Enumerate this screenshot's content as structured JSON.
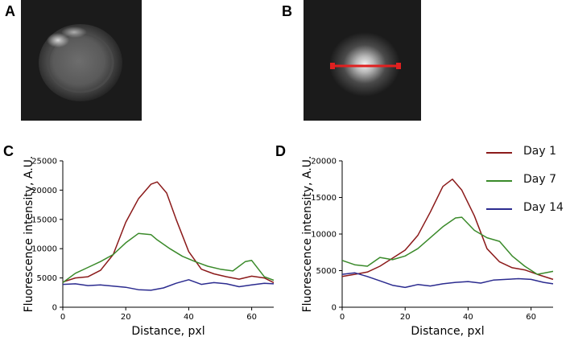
{
  "panels": {
    "a": "A",
    "b": "B",
    "c": "C",
    "d": "D"
  },
  "legend": [
    {
      "label": "Day 1",
      "color": "#8b1a1a"
    },
    {
      "label": "Day 7",
      "color": "#3a8a2a"
    },
    {
      "label": "Day 14",
      "color": "#2b2b8f"
    }
  ],
  "chart_data": [
    {
      "type": "line",
      "panel": "C",
      "xlabel": "Distance, pxl",
      "ylabel": "Fluorescence intensity, A.U.",
      "xlim": [
        0,
        67
      ],
      "ylim": [
        0,
        25000
      ],
      "xticks": [
        0,
        20,
        40,
        60
      ],
      "yticks": [
        0,
        5000,
        10000,
        15000,
        20000,
        25000
      ],
      "series": [
        {
          "name": "Day 1",
          "color": "#8b1a1a",
          "x": [
            0,
            4,
            8,
            12,
            16,
            20,
            24,
            28,
            30,
            33,
            36,
            40,
            44,
            48,
            52,
            56,
            60,
            64,
            67
          ],
          "y": [
            4300,
            5000,
            5200,
            6300,
            9000,
            14500,
            18500,
            21000,
            21400,
            19500,
            15000,
            9500,
            6500,
            5700,
            5200,
            4800,
            5300,
            5000,
            4200
          ]
        },
        {
          "name": "Day 7",
          "color": "#3a8a2a",
          "x": [
            0,
            4,
            8,
            12,
            16,
            20,
            24,
            28,
            30,
            34,
            38,
            42,
            46,
            50,
            54,
            58,
            60,
            64,
            67
          ],
          "y": [
            4200,
            5800,
            6800,
            7800,
            9000,
            11000,
            12600,
            12400,
            11500,
            10000,
            8700,
            7800,
            7000,
            6500,
            6200,
            7800,
            8000,
            5200,
            4600
          ]
        },
        {
          "name": "Day 14",
          "color": "#2b2b8f",
          "x": [
            0,
            4,
            8,
            12,
            16,
            20,
            24,
            28,
            32,
            36,
            40,
            44,
            48,
            52,
            56,
            60,
            64,
            67
          ],
          "y": [
            3900,
            4000,
            3700,
            3800,
            3600,
            3400,
            3000,
            2900,
            3300,
            4100,
            4700,
            3900,
            4200,
            4000,
            3500,
            3800,
            4100,
            4000
          ]
        }
      ]
    },
    {
      "type": "line",
      "panel": "D",
      "xlabel": "Distance, pxl",
      "ylabel": "Fluorescence intensity, A.U.",
      "xlim": [
        0,
        67
      ],
      "ylim": [
        0,
        20000
      ],
      "xticks": [
        0,
        20,
        40,
        60
      ],
      "yticks": [
        0,
        5000,
        10000,
        15000,
        20000
      ],
      "series": [
        {
          "name": "Day 1",
          "color": "#8b1a1a",
          "x": [
            0,
            4,
            8,
            12,
            16,
            20,
            24,
            28,
            32,
            35,
            38,
            42,
            46,
            50,
            54,
            58,
            62,
            67
          ],
          "y": [
            4200,
            4500,
            4800,
            5600,
            6700,
            7800,
            9800,
            13000,
            16500,
            17500,
            16000,
            12500,
            8000,
            6200,
            5400,
            5100,
            4500,
            3800
          ]
        },
        {
          "name": "Day 7",
          "color": "#3a8a2a",
          "x": [
            0,
            4,
            8,
            12,
            16,
            20,
            24,
            28,
            32,
            36,
            38,
            42,
            46,
            50,
            54,
            58,
            62,
            67
          ],
          "y": [
            6400,
            5800,
            5600,
            6800,
            6500,
            7000,
            8000,
            9500,
            11000,
            12200,
            12300,
            10500,
            9500,
            9000,
            7000,
            5600,
            4500,
            4900
          ]
        },
        {
          "name": "Day 14",
          "color": "#2b2b8f",
          "x": [
            0,
            4,
            8,
            12,
            16,
            20,
            24,
            28,
            32,
            36,
            40,
            44,
            48,
            52,
            56,
            60,
            64,
            67
          ],
          "y": [
            4500,
            4700,
            4200,
            3600,
            3000,
            2700,
            3100,
            2900,
            3200,
            3400,
            3500,
            3300,
            3700,
            3800,
            3900,
            3800,
            3400,
            3200
          ]
        }
      ]
    }
  ]
}
